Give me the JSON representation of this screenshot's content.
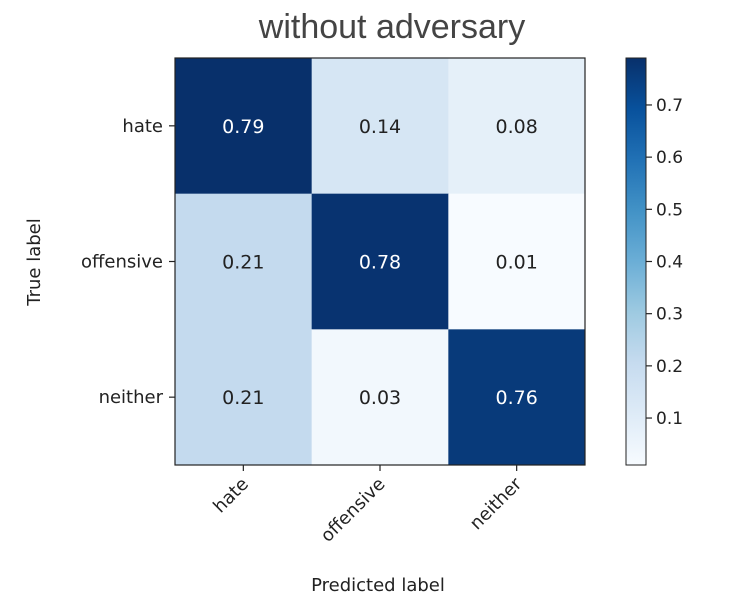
{
  "chart_data": {
    "type": "heatmap",
    "title": "without adversary",
    "xlabel": "Predicted label",
    "ylabel": "True label",
    "x_categories": [
      "hate",
      "offensive",
      "neither"
    ],
    "y_categories": [
      "hate",
      "offensive",
      "neither"
    ],
    "values": [
      [
        0.79,
        0.14,
        0.08
      ],
      [
        0.21,
        0.78,
        0.01
      ],
      [
        0.21,
        0.03,
        0.76
      ]
    ],
    "colormap": "Blues",
    "colorbar": {
      "range": [
        0.01,
        0.79
      ],
      "ticks": [
        0.1,
        0.2,
        0.3,
        0.4,
        0.5,
        0.6,
        0.7
      ]
    }
  }
}
